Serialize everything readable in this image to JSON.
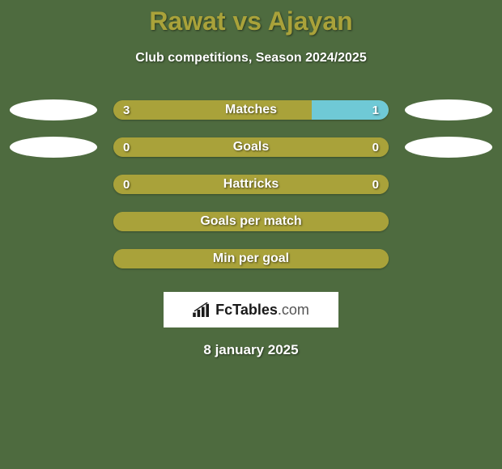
{
  "background_color": "#4e6b3f",
  "title_color": "#a9a23a",
  "subtitle_color": "#ffffff",
  "date_color": "#ffffff",
  "title": "Rawat vs Ajayan",
  "subtitle": "Club competitions, Season 2024/2025",
  "date": "8 january 2025",
  "logo": {
    "prefix": "Fc",
    "main": "Tables",
    "suffix": ".com"
  },
  "bar_base_color": "#a9a23a",
  "bar_accent_color": "#6fc9d6",
  "rows": [
    {
      "label": "Matches",
      "left_value": "3",
      "right_value": "1",
      "left_fill_pct": 72,
      "right_fill_pct": 28,
      "left_fill_color": "#a9a23a",
      "right_fill_color": "#6fc9d6",
      "show_values": true,
      "show_left_oval": true,
      "show_right_oval": true
    },
    {
      "label": "Goals",
      "left_value": "0",
      "right_value": "0",
      "left_fill_pct": 100,
      "right_fill_pct": 0,
      "left_fill_color": "#a9a23a",
      "right_fill_color": "#a9a23a",
      "show_values": true,
      "show_left_oval": true,
      "show_right_oval": true
    },
    {
      "label": "Hattricks",
      "left_value": "0",
      "right_value": "0",
      "left_fill_pct": 100,
      "right_fill_pct": 0,
      "left_fill_color": "#a9a23a",
      "right_fill_color": "#a9a23a",
      "show_values": true,
      "show_left_oval": false,
      "show_right_oval": false
    },
    {
      "label": "Goals per match",
      "left_value": "",
      "right_value": "",
      "left_fill_pct": 100,
      "right_fill_pct": 0,
      "left_fill_color": "#a9a23a",
      "right_fill_color": "#a9a23a",
      "show_values": false,
      "show_left_oval": false,
      "show_right_oval": false
    },
    {
      "label": "Min per goal",
      "left_value": "",
      "right_value": "",
      "left_fill_pct": 100,
      "right_fill_pct": 0,
      "left_fill_color": "#a9a23a",
      "right_fill_color": "#a9a23a",
      "show_values": false,
      "show_left_oval": false,
      "show_right_oval": false
    }
  ]
}
